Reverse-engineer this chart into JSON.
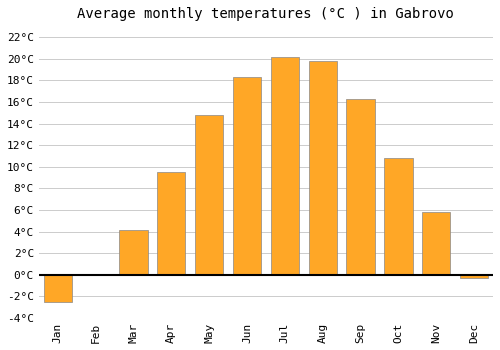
{
  "title": "Average monthly temperatures (°C ) in Gabrovo",
  "months": [
    "Jan",
    "Feb",
    "Mar",
    "Apr",
    "May",
    "Jun",
    "Jul",
    "Aug",
    "Sep",
    "Oct",
    "Nov",
    "Dec"
  ],
  "values": [
    -2.5,
    0,
    4.1,
    9.5,
    14.8,
    18.3,
    20.2,
    19.8,
    16.3,
    10.8,
    5.8,
    -0.3
  ],
  "bar_color": "#FFA726",
  "bar_edge_color": "#888888",
  "ylim": [
    -4,
    23
  ],
  "yticks": [
    -4,
    -2,
    0,
    2,
    4,
    6,
    8,
    10,
    12,
    14,
    16,
    18,
    20,
    22
  ],
  "ytick_labels": [
    "-4°C",
    "-2°C",
    "0°C",
    "2°C",
    "4°C",
    "6°C",
    "8°C",
    "10°C",
    "12°C",
    "14°C",
    "16°C",
    "18°C",
    "20°C",
    "22°C"
  ],
  "background_color": "#ffffff",
  "plot_bg_color": "#ffffff",
  "grid_color": "#cccccc",
  "zero_line_color": "#000000",
  "title_fontsize": 10,
  "tick_fontsize": 8,
  "bar_width": 0.75
}
